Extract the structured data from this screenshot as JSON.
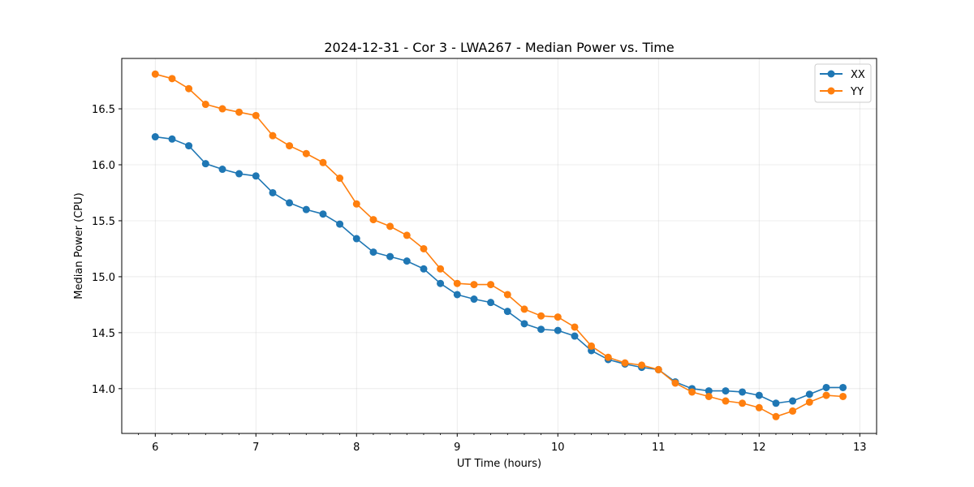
{
  "chart_data": {
    "type": "line",
    "title": "2024-12-31 - Cor 3 - LWA267 - Median Power vs. Time",
    "xlabel": "UT Time (hours)",
    "ylabel": "Median Power (CPU)",
    "xlim": [
      5.667,
      13.167
    ],
    "ylim": [
      13.6,
      16.95
    ],
    "xticks": [
      6,
      7,
      8,
      9,
      10,
      11,
      12,
      13
    ],
    "yticks": [
      14.0,
      14.5,
      15.0,
      15.5,
      16.0,
      16.5
    ],
    "grid": true,
    "legend": "top-right",
    "x": [
      6.0,
      6.167,
      6.333,
      6.5,
      6.667,
      6.833,
      7.0,
      7.167,
      7.333,
      7.5,
      7.667,
      7.833,
      8.0,
      8.167,
      8.333,
      8.5,
      8.667,
      8.833,
      9.0,
      9.167,
      9.333,
      9.5,
      9.667,
      9.833,
      10.0,
      10.167,
      10.333,
      10.5,
      10.667,
      10.833,
      11.0,
      11.167,
      11.333,
      11.5,
      11.667,
      11.833,
      12.0,
      12.167,
      12.333,
      12.5,
      12.667,
      12.833
    ],
    "series": [
      {
        "name": "XX",
        "color": "#1f77b4",
        "values": [
          16.25,
          16.23,
          16.17,
          16.01,
          15.96,
          15.92,
          15.9,
          15.75,
          15.66,
          15.6,
          15.56,
          15.47,
          15.34,
          15.22,
          15.18,
          15.14,
          15.07,
          14.94,
          14.84,
          14.8,
          14.77,
          14.69,
          14.58,
          14.53,
          14.52,
          14.47,
          14.34,
          14.26,
          14.22,
          14.19,
          14.17,
          14.06,
          14.0,
          13.98,
          13.98,
          13.97,
          13.94,
          13.87,
          13.89,
          13.95,
          14.01,
          14.01
        ]
      },
      {
        "name": "YY",
        "color": "#ff7f0e",
        "values": [
          16.81,
          16.77,
          16.68,
          16.54,
          16.5,
          16.47,
          16.44,
          16.26,
          16.17,
          16.1,
          16.02,
          15.88,
          15.65,
          15.51,
          15.45,
          15.37,
          15.25,
          15.07,
          14.94,
          14.93,
          14.93,
          14.84,
          14.71,
          14.65,
          14.64,
          14.55,
          14.38,
          14.28,
          14.23,
          14.21,
          14.17,
          14.05,
          13.97,
          13.93,
          13.89,
          13.87,
          13.83,
          13.75,
          13.8,
          13.88,
          13.94,
          13.93
        ]
      }
    ]
  }
}
